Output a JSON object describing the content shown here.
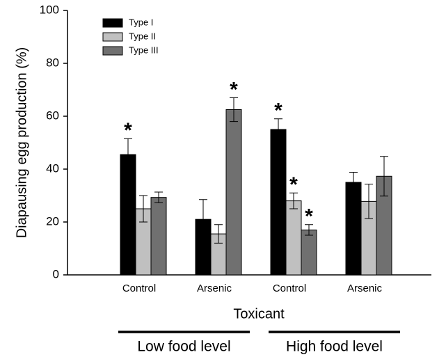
{
  "chart_data": {
    "type": "bar",
    "y_label": "Diapausing egg production (%)",
    "x_label": "Toxicant",
    "categories": [
      "Control",
      "Arsenic",
      "Control",
      "Arsenic"
    ],
    "group_labels": [
      "Low food level",
      "High food level"
    ],
    "series": [
      {
        "name": "Type I",
        "color": "#000000",
        "values": [
          45.5,
          21,
          55,
          35
        ],
        "errors": [
          6,
          7.5,
          4,
          3.8
        ],
        "significance": [
          "*",
          null,
          "*",
          null
        ]
      },
      {
        "name": "Type II",
        "color": "#c0c0c0",
        "values": [
          25,
          15.5,
          28,
          27.8
        ],
        "errors": [
          5,
          3.5,
          3,
          6.5
        ],
        "significance": [
          null,
          null,
          "*",
          null
        ]
      },
      {
        "name": "Type III",
        "color": "#707070",
        "values": [
          29.3,
          62.5,
          17,
          37.3
        ],
        "errors": [
          2,
          4.5,
          2,
          7.5
        ],
        "significance": [
          null,
          "*",
          "*",
          null
        ]
      }
    ],
    "ylim": [
      0,
      100
    ],
    "yticks": [
      0,
      20,
      40,
      60,
      80,
      100
    ],
    "grid": false,
    "legend": "upper-left"
  }
}
